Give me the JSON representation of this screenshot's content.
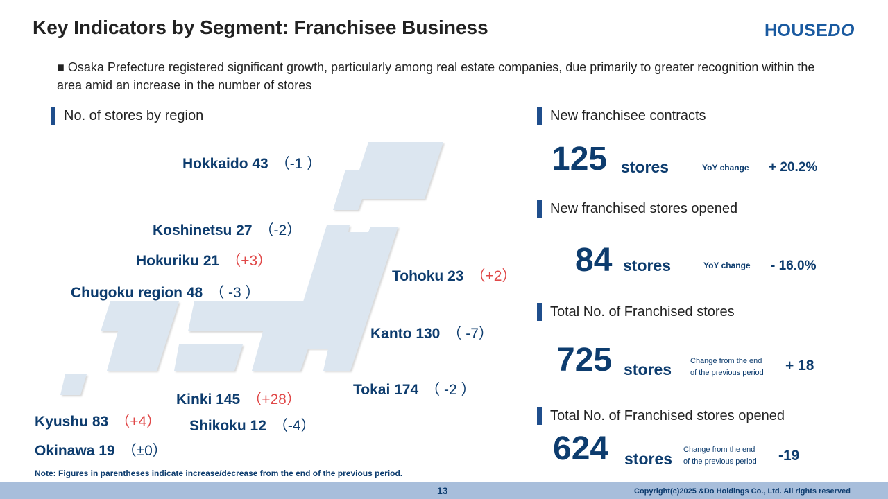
{
  "header": {
    "title": "Key Indicators by Segment: Franchisee Business",
    "logo": "HOUSEDO"
  },
  "bullet": "■ Osaka Prefecture registered significant growth, particularly among real estate companies, due primarily to greater recognition within the area amid an increase in the number of stores",
  "map_section": {
    "title": "No. of stores by region",
    "regions": [
      {
        "label": "Hokkaido 43",
        "change": "（-1 ）",
        "up": false
      },
      {
        "label": "Koshinetsu 27",
        "change": "（-2）",
        "up": false
      },
      {
        "label": "Hokuriku 21",
        "change": "（+3）",
        "up": true
      },
      {
        "label": "Chugoku region 48",
        "change": "（ -3 ）",
        "up": false
      },
      {
        "label": "Tohoku 23",
        "change": "（+2）",
        "up": true
      },
      {
        "label": "Kanto 130",
        "change": "（ -7）",
        "up": false
      },
      {
        "label": "Tokai 174",
        "change": "（ -2 ）",
        "up": false
      },
      {
        "label": "Kinki 145",
        "change": "（+28）",
        "up": true
      },
      {
        "label": "Kyushu 83",
        "change": "（+4）",
        "up": true
      },
      {
        "label": "Shikoku 12",
        "change": "（-4）",
        "up": false
      },
      {
        "label": "Okinawa 19",
        "change": "（±0）",
        "up": false
      }
    ],
    "note": "Note: Figures in parentheses indicate increase/decrease from the end of the previous period."
  },
  "kpis": [
    {
      "title": "New franchisee contracts",
      "value": "125",
      "unit": "stores",
      "change_label": "YoY change",
      "change": "+ 20.2%"
    },
    {
      "title": "New franchised stores opened",
      "value": "84",
      "unit": "stores",
      "change_label": "YoY change",
      "change": "- 16.0%"
    },
    {
      "title": "Total No. of Franchised stores",
      "value": "725",
      "unit": "stores",
      "change_label_1": "Change from the end",
      "change_label_2": "of the previous period",
      "change": "+ 18"
    },
    {
      "title": "Total No. of Franchised stores opened",
      "value": "624",
      "unit": "stores",
      "change_label_1": "Change from the end",
      "change_label_2": "of the previous period",
      "change": "-19"
    }
  ],
  "footer": {
    "page": "13",
    "copyright": "Copyright(c)2025 &Do Holdings Co., Ltd. All rights reserved"
  },
  "colors": {
    "navy": "#0d3c6e",
    "red": "#e04848",
    "map": "#dce6f0",
    "footer": "#a8bedb"
  }
}
